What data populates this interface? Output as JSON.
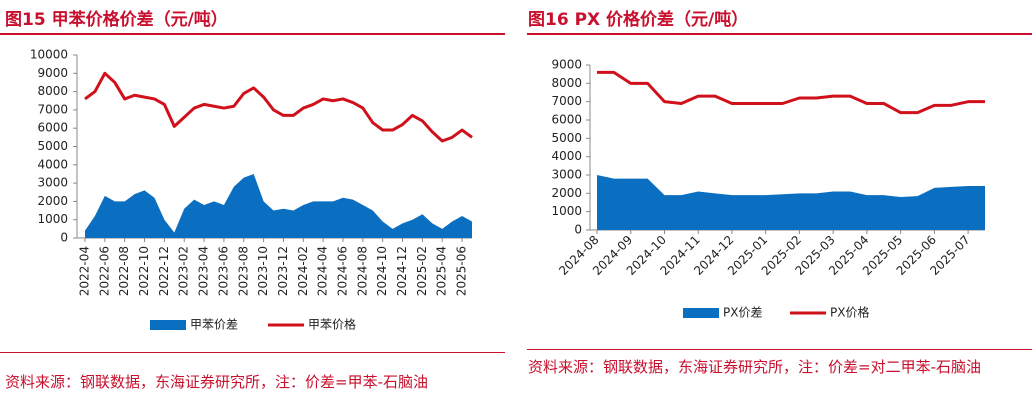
{
  "chart_data": [
    {
      "type": "combo",
      "title": "图15  甲苯价格价差（元/吨）",
      "source": "资料来源：钢联数据，东海证券研究所，注：价差=甲苯-石脑油",
      "categories": [
        "2022-04",
        null,
        "2022-06",
        null,
        "2022-08",
        null,
        "2022-10",
        null,
        "2022-12",
        null,
        "2023-02",
        null,
        "2023-04",
        null,
        "2023-06",
        null,
        "2023-08",
        null,
        "2023-10",
        null,
        "2023-12",
        null,
        "2024-02",
        null,
        "2024-04",
        null,
        "2024-06",
        null,
        "2024-08",
        null,
        "2024-10",
        null,
        "2024-12",
        null,
        "2025-02",
        null,
        "2025-04",
        null,
        "2025-06",
        null
      ],
      "series": [
        {
          "name": "甲苯价差",
          "kind": "area",
          "color": "#0b6fc1",
          "values": [
            400,
            1200,
            2300,
            2000,
            2000,
            2400,
            2600,
            2200,
            1000,
            300,
            1600,
            2100,
            1800,
            2000,
            1800,
            2800,
            3300,
            3500,
            2000,
            1500,
            1600,
            1500,
            1800,
            2000,
            2000,
            2000,
            2200,
            2100,
            1800,
            1500,
            900,
            500,
            800,
            1000,
            1300,
            800,
            500,
            900,
            1200,
            900
          ]
        },
        {
          "name": "甲苯价格",
          "kind": "line",
          "color": "#d0111b",
          "values": [
            7600,
            8000,
            9000,
            8500,
            7600,
            7800,
            7700,
            7600,
            7300,
            6100,
            6600,
            7100,
            7300,
            7200,
            7100,
            7200,
            7900,
            8200,
            7700,
            7000,
            6700,
            6700,
            7100,
            7300,
            7600,
            7500,
            7600,
            7400,
            7100,
            6300,
            5900,
            5900,
            6200,
            6700,
            6400,
            5800,
            5300,
            5500,
            5900,
            5500
          ]
        }
      ],
      "ylim": [
        0,
        10000
      ],
      "yticks": [
        0,
        1000,
        2000,
        3000,
        4000,
        5000,
        6000,
        7000,
        8000,
        9000,
        10000
      ]
    },
    {
      "type": "combo",
      "title": "图16  PX 价格价差（元/吨）",
      "source": "资料来源：钢联数据，东海证券研究所，注：价差=对二甲苯-石脑油",
      "categories": [
        "2024-08",
        null,
        "2024-09",
        null,
        "2024-10",
        null,
        "2024-11",
        null,
        "2024-12",
        null,
        "2025-01",
        null,
        "2025-02",
        null,
        "2025-03",
        null,
        "2025-04",
        null,
        "2025-05",
        null,
        "2025-06",
        null,
        "2025-07",
        null
      ],
      "series": [
        {
          "name": "PX价差",
          "kind": "area",
          "color": "#0b6fc1",
          "values": [
            3000,
            2800,
            2800,
            2800,
            1900,
            1900,
            2100,
            2000,
            1900,
            1900,
            1900,
            1950,
            2000,
            2000,
            2100,
            2100,
            1900,
            1900,
            1800,
            1850,
            2300,
            2350,
            2400,
            2400
          ]
        },
        {
          "name": "PX价格",
          "kind": "line",
          "color": "#d0111b",
          "values": [
            8600,
            8600,
            8000,
            8000,
            7000,
            6900,
            7300,
            7300,
            6900,
            6900,
            6900,
            6900,
            7200,
            7200,
            7300,
            7300,
            6900,
            6900,
            6400,
            6400,
            6800,
            6800,
            7000,
            7000
          ]
        }
      ],
      "ylim": [
        0,
        9000
      ],
      "yticks": [
        0,
        1000,
        2000,
        3000,
        4000,
        5000,
        6000,
        7000,
        8000,
        9000
      ]
    }
  ]
}
